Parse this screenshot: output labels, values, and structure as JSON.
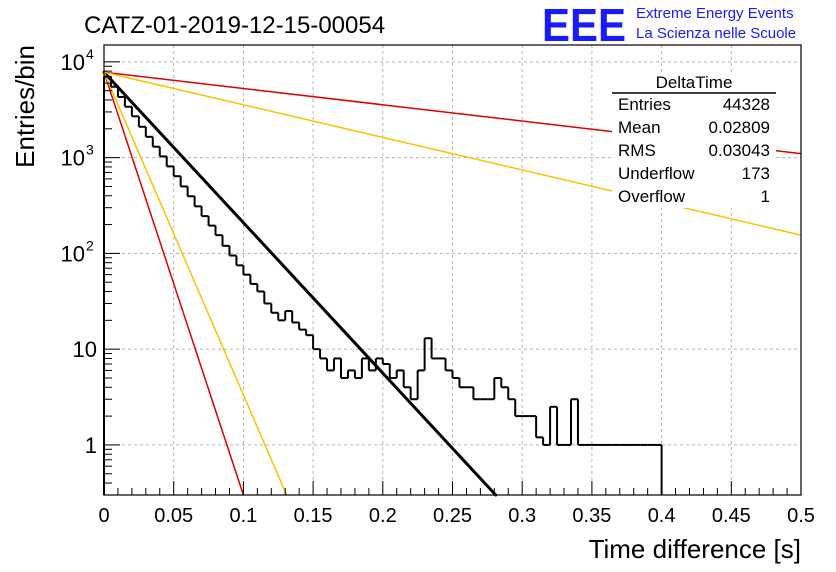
{
  "header": {
    "run_title": "CATZ-01-2019-12-15-00054",
    "logo_text": "EEE",
    "logo_line1": "Extreme Energy Events",
    "logo_line2": "La Scienza nelle Scuole",
    "logo_color": "#1a1aff"
  },
  "stats_box": {
    "title": "DeltaTime",
    "rows": [
      {
        "label": "Entries",
        "value": "44328"
      },
      {
        "label": "Mean",
        "value": "0.02809"
      },
      {
        "label": "RMS",
        "value": "0.03043"
      },
      {
        "label": "Underflow",
        "value": "173"
      },
      {
        "label": "Overflow",
        "value": "1"
      }
    ]
  },
  "chart_data": {
    "type": "line",
    "xlabel": "Time difference [s]",
    "ylabel": "Entries/bin",
    "xlim": [
      0,
      0.5
    ],
    "ylim": [
      0.3,
      15000
    ],
    "y_scale": "log",
    "grid": true,
    "x_ticks": [
      "0",
      "0.05",
      "0.1",
      "0.15",
      "0.2",
      "0.25",
      "0.3",
      "0.35",
      "0.4",
      "0.45",
      "0.5"
    ],
    "y_ticks": [
      {
        "value": 1,
        "label": "1"
      },
      {
        "value": 10,
        "label": "10"
      },
      {
        "value": 100,
        "base": "10",
        "exp": "2"
      },
      {
        "value": 1000,
        "base": "10",
        "exp": "3"
      },
      {
        "value": 10000,
        "base": "10",
        "exp": "4"
      }
    ],
    "histogram": {
      "bin_width": 0.005,
      "color": "#000000",
      "values": [
        7000,
        5500,
        4300,
        3400,
        2700,
        2100,
        1650,
        1300,
        1030,
        810,
        640,
        500,
        395,
        310,
        245,
        195,
        155,
        120,
        95,
        75,
        60,
        48,
        40,
        30,
        24,
        20,
        25,
        19,
        16,
        14,
        10,
        8,
        6,
        8,
        5,
        6,
        5,
        8,
        6,
        8,
        7,
        5,
        6,
        4,
        3,
        6,
        13,
        8,
        8,
        6,
        5,
        4,
        4,
        3,
        3,
        3,
        5,
        4,
        3,
        2,
        2,
        2,
        1.2,
        1,
        2.5,
        1,
        1,
        3,
        1,
        1,
        1,
        1,
        1,
        1,
        1,
        1,
        1,
        1,
        1,
        1
      ]
    },
    "curves": [
      {
        "color": "#000000",
        "x": [
          0,
          0.281
        ],
        "y": [
          7800,
          0.3
        ],
        "width": 3
      },
      {
        "color": "#dd0000",
        "x": [
          0,
          0.5
        ],
        "y": [
          7800,
          1100
        ],
        "width": 1.5
      },
      {
        "color": "#ffc000",
        "x": [
          0,
          0.5
        ],
        "y": [
          7800,
          155
        ],
        "width": 1.5
      },
      {
        "color": "#dd0000",
        "x": [
          0,
          0.1
        ],
        "y": [
          7800,
          0.3
        ],
        "width": 1.5
      },
      {
        "color": "#ffc000",
        "x": [
          0,
          0.131
        ],
        "y": [
          7800,
          0.3
        ],
        "width": 1.5
      }
    ]
  }
}
